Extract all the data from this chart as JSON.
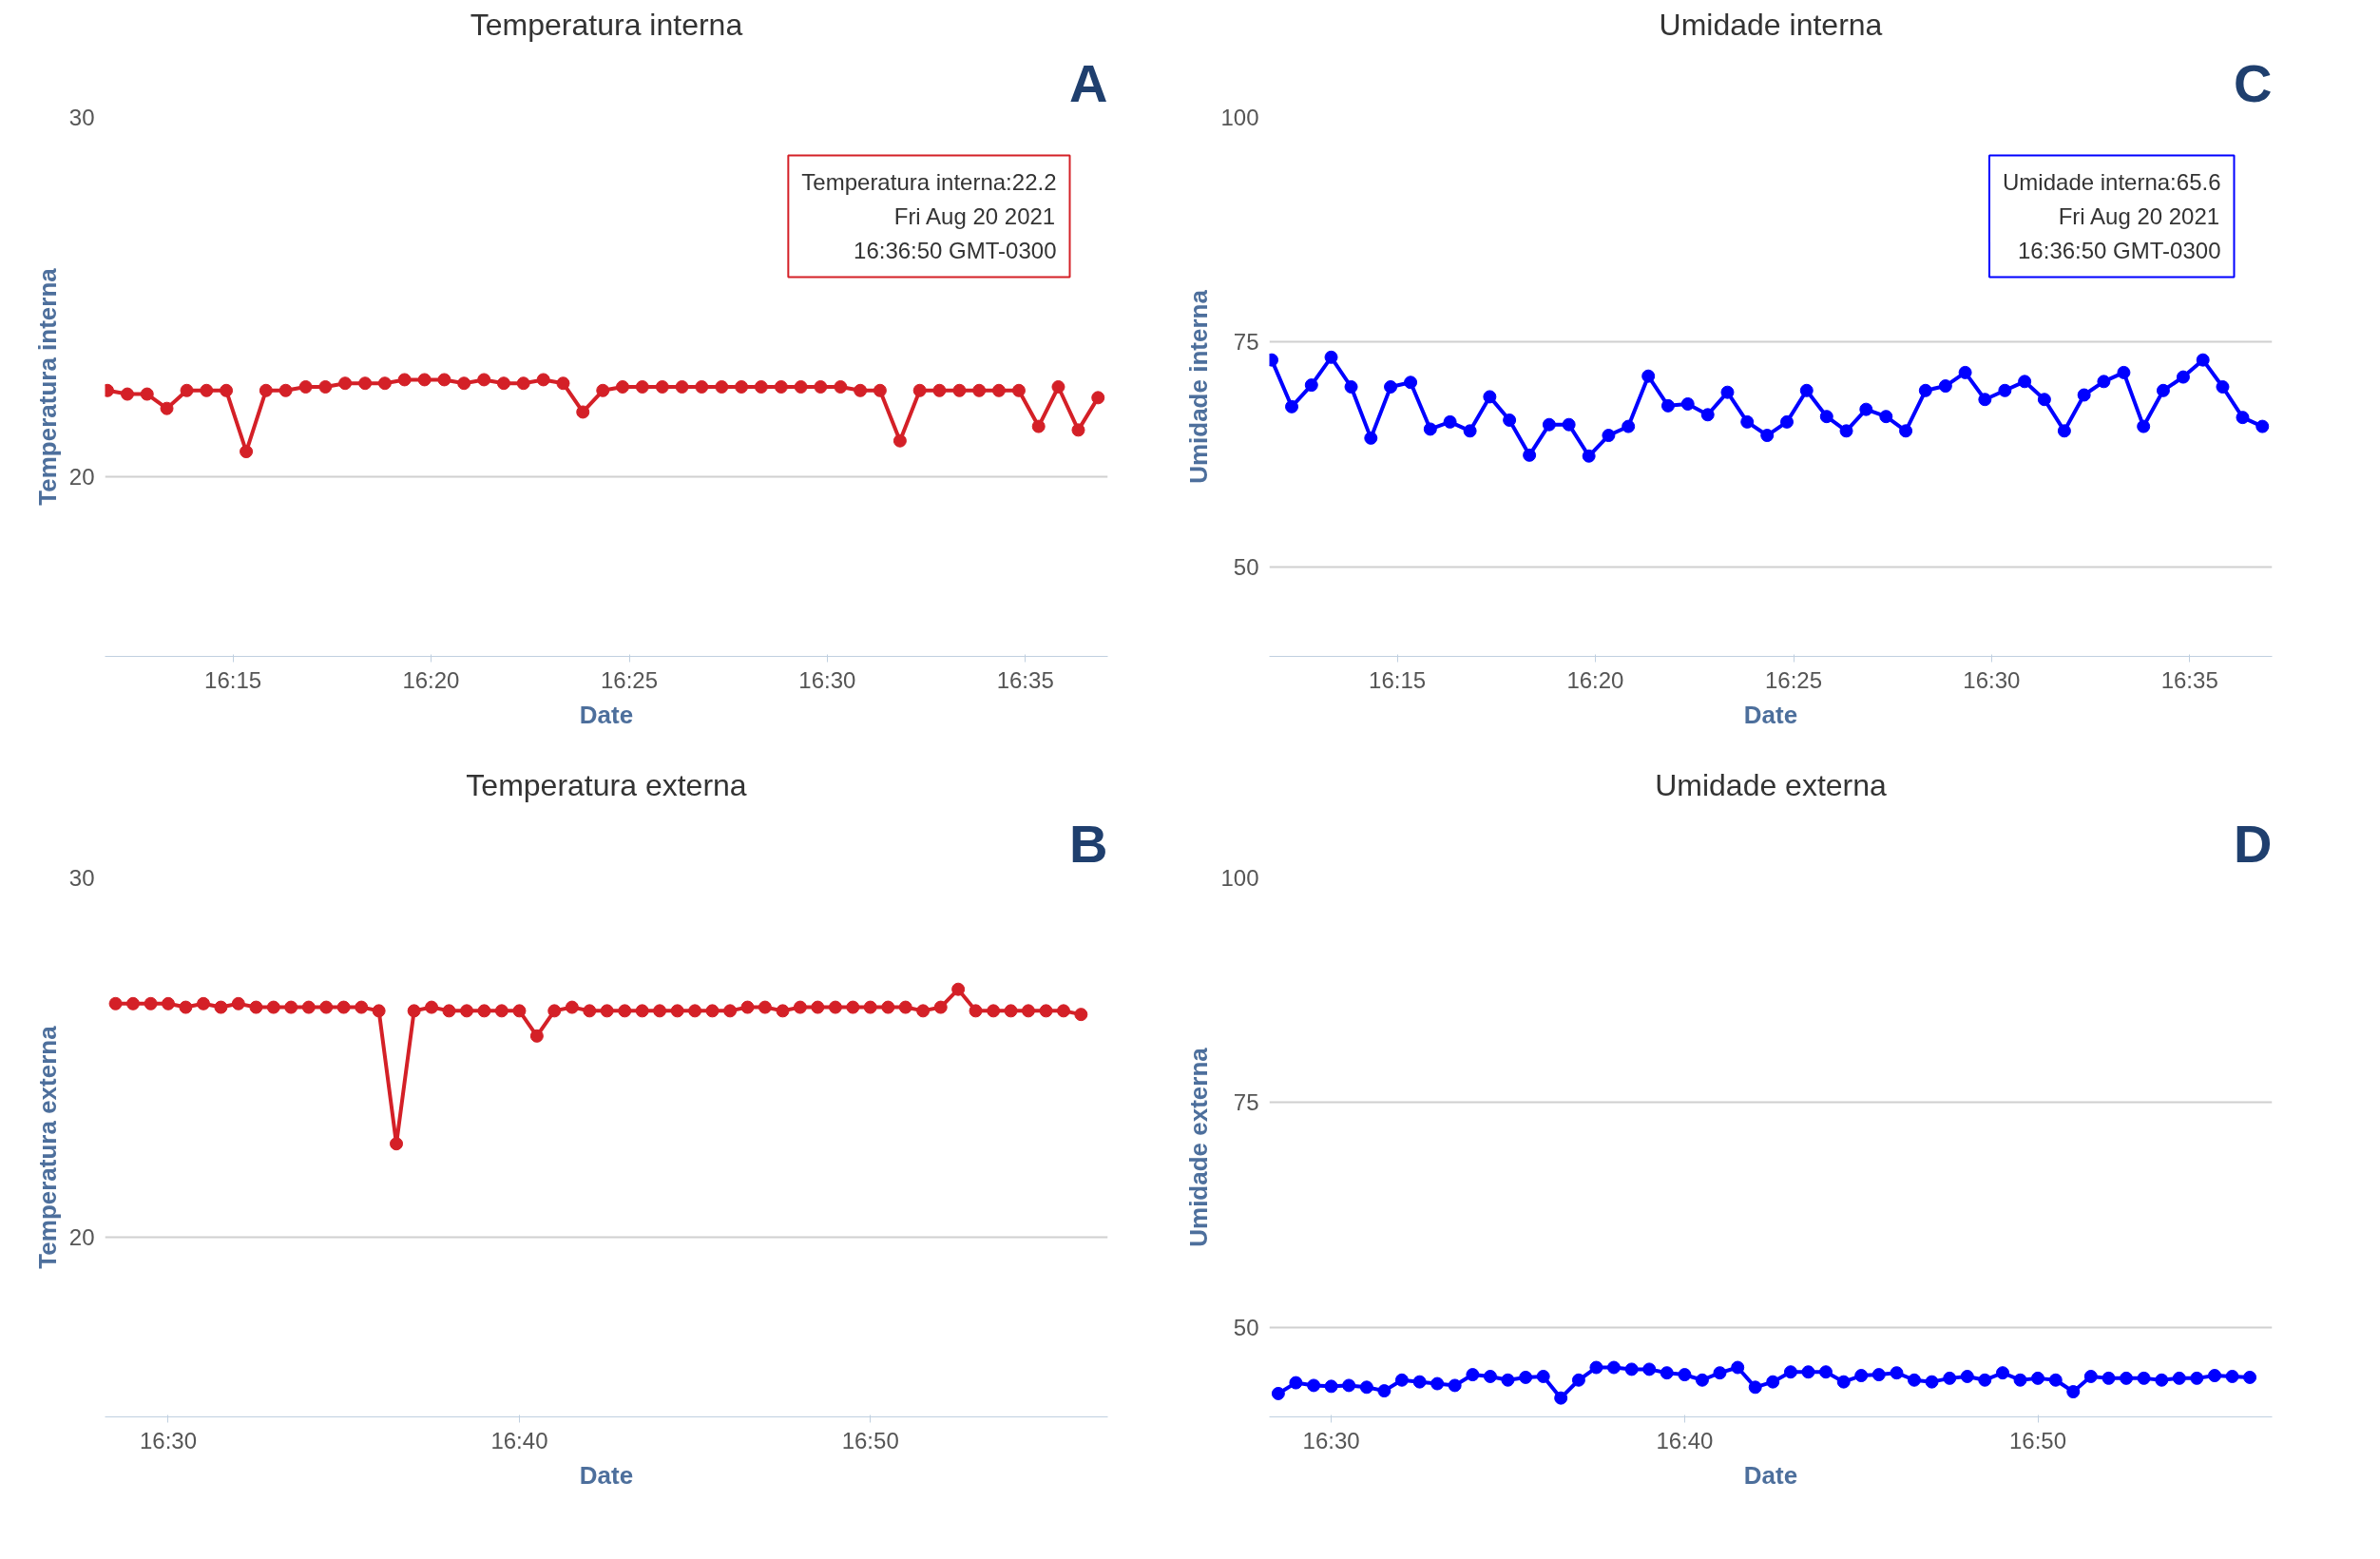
{
  "chart_data": [
    {
      "type": "line",
      "title": "Temperatura interna",
      "xlabel": "Date",
      "ylabel": "Temperatura interna",
      "grid": "y",
      "marker": "circle",
      "line_style": "solid",
      "xlim": [
        16.1962,
        16.618
      ],
      "ylim": [
        15,
        30
      ],
      "yticks": [
        20,
        30
      ],
      "xticks": [
        {
          "value": 16.25,
          "label": "16:15"
        },
        {
          "value": 16.3333,
          "label": "16:20"
        },
        {
          "value": 16.4167,
          "label": "16:25"
        },
        {
          "value": 16.5,
          "label": "16:30"
        },
        {
          "value": 16.5833,
          "label": "16:35"
        }
      ],
      "x": [
        16.1972,
        16.2056,
        16.2139,
        16.2222,
        16.2306,
        16.2389,
        16.2472,
        16.2556,
        16.2639,
        16.2722,
        16.2806,
        16.2889,
        16.2972,
        16.3056,
        16.3139,
        16.3222,
        16.3306,
        16.3389,
        16.3472,
        16.3556,
        16.3639,
        16.3722,
        16.3806,
        16.3889,
        16.3972,
        16.4056,
        16.4139,
        16.4222,
        16.4306,
        16.4389,
        16.4472,
        16.4556,
        16.4639,
        16.4722,
        16.4806,
        16.4889,
        16.4972,
        16.5056,
        16.5139,
        16.5222,
        16.5306,
        16.5389,
        16.5472,
        16.5556,
        16.5639,
        16.5722,
        16.5806,
        16.5889,
        16.5972,
        16.6056,
        16.6139
      ],
      "series": [
        {
          "color": "#d42027",
          "values": [
            22.4,
            22.3,
            22.3,
            21.9,
            22.4,
            22.4,
            22.4,
            20.7,
            22.4,
            22.4,
            22.5,
            22.5,
            22.6,
            22.6,
            22.6,
            22.7,
            22.7,
            22.7,
            22.6,
            22.7,
            22.6,
            22.6,
            22.7,
            22.6,
            21.8,
            22.4,
            22.5,
            22.5,
            22.5,
            22.5,
            22.5,
            22.5,
            22.5,
            22.5,
            22.5,
            22.5,
            22.5,
            22.5,
            22.4,
            22.4,
            21.0,
            22.4,
            22.4,
            22.4,
            22.4,
            22.4,
            22.4,
            21.4,
            22.5,
            21.3,
            22.2
          ]
        }
      ],
      "annotations": [
        "A",
        "Temperatura interna:22.2\nFri Aug 20 2021\n16:36:50 GMT-0300"
      ]
    },
    {
      "type": "line",
      "title": "Umidade interna",
      "xlabel": "Date",
      "ylabel": "Umidade interna",
      "grid": "y",
      "marker": "circle",
      "line_style": "solid",
      "xlim": [
        16.1962,
        16.618
      ],
      "ylim": [
        40,
        100
      ],
      "yticks": [
        50,
        75,
        100
      ],
      "xticks": [
        {
          "value": 16.25,
          "label": "16:15"
        },
        {
          "value": 16.3333,
          "label": "16:20"
        },
        {
          "value": 16.4167,
          "label": "16:25"
        },
        {
          "value": 16.5,
          "label": "16:30"
        },
        {
          "value": 16.5833,
          "label": "16:35"
        }
      ],
      "x": [
        16.1972,
        16.2056,
        16.2139,
        16.2222,
        16.2306,
        16.2389,
        16.2472,
        16.2556,
        16.2639,
        16.2722,
        16.2806,
        16.2889,
        16.2972,
        16.3056,
        16.3139,
        16.3222,
        16.3306,
        16.3389,
        16.3472,
        16.3556,
        16.3639,
        16.3722,
        16.3806,
        16.3889,
        16.3972,
        16.4056,
        16.4139,
        16.4222,
        16.4306,
        16.4389,
        16.4472,
        16.4556,
        16.4639,
        16.4722,
        16.4806,
        16.4889,
        16.4972,
        16.5056,
        16.5139,
        16.5222,
        16.5306,
        16.5389,
        16.5472,
        16.5556,
        16.5639,
        16.5722,
        16.5806,
        16.5889,
        16.5972,
        16.6056,
        16.6139
      ],
      "series": [
        {
          "color": "#0000ff",
          "values": [
            73.0,
            67.8,
            70.2,
            73.3,
            70.0,
            64.3,
            70.0,
            70.5,
            65.3,
            66.1,
            65.1,
            68.9,
            66.3,
            62.4,
            65.8,
            65.8,
            62.3,
            64.6,
            65.6,
            71.2,
            67.9,
            68.1,
            66.9,
            69.4,
            66.1,
            64.6,
            66.1,
            69.6,
            66.7,
            65.1,
            67.5,
            66.7,
            65.1,
            69.6,
            70.1,
            71.6,
            68.6,
            69.6,
            70.6,
            68.6,
            65.1,
            69.1,
            70.6,
            71.6,
            65.6,
            69.6,
            71.1,
            73.0,
            70.0,
            66.6,
            65.6
          ]
        }
      ],
      "annotations": [
        "C",
        "Umidade interna:65.6\nFri Aug 20 2021\n16:36:50 GMT-0300"
      ]
    },
    {
      "type": "line",
      "title": "Temperatura externa",
      "xlabel": "Date",
      "ylabel": "Temperatura externa",
      "grid": "y",
      "marker": "circle",
      "line_style": "solid",
      "xlim": [
        16.47,
        16.946
      ],
      "ylim": [
        15,
        30
      ],
      "yticks": [
        20,
        30
      ],
      "xticks": [
        {
          "value": 16.5,
          "label": "16:30"
        },
        {
          "value": 16.6667,
          "label": "16:40"
        },
        {
          "value": 16.8333,
          "label": "16:50"
        }
      ],
      "x": [
        16.475,
        16.4833,
        16.4917,
        16.5,
        16.5083,
        16.5167,
        16.525,
        16.5333,
        16.5417,
        16.55,
        16.5583,
        16.5667,
        16.575,
        16.5833,
        16.5917,
        16.6,
        16.6083,
        16.6167,
        16.625,
        16.6333,
        16.6417,
        16.65,
        16.6583,
        16.6667,
        16.675,
        16.6833,
        16.6917,
        16.7,
        16.7083,
        16.7167,
        16.725,
        16.7333,
        16.7417,
        16.75,
        16.7583,
        16.7667,
        16.775,
        16.7833,
        16.7917,
        16.8,
        16.8083,
        16.8167,
        16.825,
        16.8333,
        16.8417,
        16.85,
        16.8583,
        16.8667,
        16.875,
        16.8833,
        16.8917,
        16.9,
        16.9083,
        16.9167,
        16.925,
        16.9333
      ],
      "series": [
        {
          "color": "#d42027",
          "values": [
            26.5,
            26.5,
            26.5,
            26.5,
            26.4,
            26.5,
            26.4,
            26.5,
            26.4,
            26.4,
            26.4,
            26.4,
            26.4,
            26.4,
            26.4,
            26.3,
            22.6,
            26.3,
            26.4,
            26.3,
            26.3,
            26.3,
            26.3,
            26.3,
            25.6,
            26.3,
            26.4,
            26.3,
            26.3,
            26.3,
            26.3,
            26.3,
            26.3,
            26.3,
            26.3,
            26.3,
            26.4,
            26.4,
            26.3,
            26.4,
            26.4,
            26.4,
            26.4,
            26.4,
            26.4,
            26.4,
            26.3,
            26.4,
            26.9,
            26.3,
            26.3,
            26.3,
            26.3,
            26.3,
            26.3,
            26.2
          ]
        }
      ],
      "annotations": [
        "B"
      ]
    },
    {
      "type": "line",
      "title": "Umidade externa",
      "xlabel": "Date",
      "ylabel": "Umidade externa",
      "grid": "y",
      "marker": "circle",
      "line_style": "solid",
      "xlim": [
        16.4708,
        16.9438
      ],
      "ylim": [
        40,
        100
      ],
      "yticks": [
        50,
        75,
        100
      ],
      "xticks": [
        {
          "value": 16.5,
          "label": "16:30"
        },
        {
          "value": 16.6667,
          "label": "16:40"
        },
        {
          "value": 16.8333,
          "label": "16:50"
        }
      ],
      "x": [
        16.475,
        16.4833,
        16.4917,
        16.5,
        16.5083,
        16.5167,
        16.525,
        16.5333,
        16.5417,
        16.55,
        16.5583,
        16.5667,
        16.575,
        16.5833,
        16.5917,
        16.6,
        16.6083,
        16.6167,
        16.625,
        16.6333,
        16.6417,
        16.65,
        16.6583,
        16.6667,
        16.675,
        16.6833,
        16.6917,
        16.7,
        16.7083,
        16.7167,
        16.725,
        16.7333,
        16.7417,
        16.75,
        16.7583,
        16.7667,
        16.775,
        16.7833,
        16.7917,
        16.8,
        16.8083,
        16.8167,
        16.825,
        16.8333,
        16.8417,
        16.85,
        16.8583,
        16.8667,
        16.875,
        16.8833,
        16.8917,
        16.9,
        16.9083,
        16.9167,
        16.925,
        16.9333
      ],
      "series": [
        {
          "color": "#0000ff",
          "values": [
            42.6,
            43.8,
            43.5,
            43.4,
            43.5,
            43.3,
            42.9,
            44.1,
            43.9,
            43.7,
            43.5,
            44.7,
            44.5,
            44.1,
            44.4,
            44.5,
            42.1,
            44.1,
            45.5,
            45.5,
            45.3,
            45.3,
            44.9,
            44.7,
            44.1,
            44.9,
            45.5,
            43.3,
            43.9,
            45.0,
            45.0,
            45.0,
            43.9,
            44.6,
            44.7,
            44.9,
            44.1,
            43.9,
            44.3,
            44.5,
            44.1,
            44.9,
            44.1,
            44.3,
            44.1,
            42.8,
            44.5,
            44.3,
            44.3,
            44.3,
            44.1,
            44.3,
            44.3,
            44.6,
            44.5,
            44.4
          ]
        }
      ],
      "annotations": [
        "D"
      ]
    }
  ]
}
